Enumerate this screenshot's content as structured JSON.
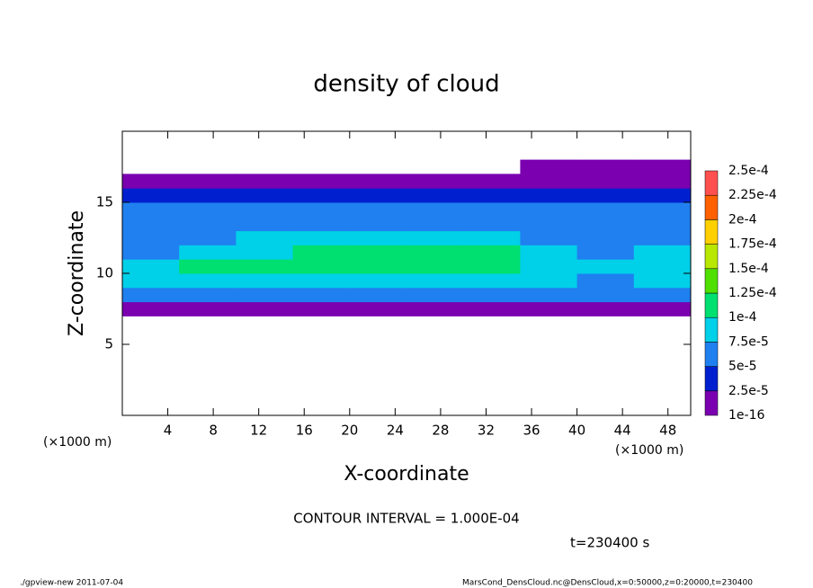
{
  "chart_data": {
    "type": "heatmap",
    "title": "density of cloud",
    "x_label": "X-coordinate",
    "y_label": "Z-coordinate",
    "x_unit": "(×1000 m)",
    "x_unit_right": "(×1000 m)",
    "annotation": "CONTOUR INTERVAL = 1.000E-04",
    "time_label": "t=230400 s",
    "footer_left": "./gpview-new  2011-07-04",
    "footer_right": "MarsCond_DensCloud.nc@DensCloud,x=0:50000,z=0:20000,t=230400",
    "xlim": [
      0,
      50
    ],
    "ylim": [
      0,
      20
    ],
    "xticks": [
      4,
      8,
      12,
      16,
      20,
      24,
      28,
      32,
      36,
      40,
      44,
      48
    ],
    "yticks": [
      5,
      10,
      15
    ],
    "xbins": [
      0,
      5,
      10,
      15,
      20,
      25,
      30,
      35,
      40,
      45,
      50
    ],
    "ybins": [
      0,
      1,
      2,
      3,
      4,
      5,
      6,
      7,
      8,
      9,
      10,
      11,
      12,
      13,
      14,
      15,
      16,
      17,
      18,
      19,
      20
    ],
    "values": [
      [
        0,
        0,
        0,
        0,
        0,
        0,
        0,
        0,
        0,
        0
      ],
      [
        0,
        0,
        0,
        0,
        0,
        0,
        0,
        0,
        0,
        0
      ],
      [
        0,
        0,
        0,
        0,
        0,
        0,
        0,
        0,
        0,
        0
      ],
      [
        0,
        0,
        0,
        0,
        0,
        0,
        0,
        0,
        0,
        0
      ],
      [
        0,
        0,
        0,
        0,
        0,
        0,
        0,
        0,
        0,
        0
      ],
      [
        0,
        0,
        0,
        0,
        0,
        0,
        0,
        0,
        0,
        0
      ],
      [
        0,
        0,
        0,
        0,
        0,
        0,
        0,
        0,
        0,
        0
      ],
      [
        2e-05,
        2e-05,
        2e-05,
        2e-05,
        2e-05,
        2e-05,
        2e-05,
        2e-05,
        1e-05,
        2e-05
      ],
      [
        5e-05,
        6e-05,
        6e-05,
        6e-05,
        6e-05,
        6e-05,
        6e-05,
        6e-05,
        5e-05,
        6e-05
      ],
      [
        8e-05,
        9e-05,
        9e-05,
        9e-05,
        9e-05,
        9e-05,
        9e-05,
        8e-05,
        7e-05,
        8e-05
      ],
      [
        8e-05,
        0.0001,
        0.000105,
        0.00011,
        0.00011,
        0.00011,
        0.0001,
        9e-05,
        8e-05,
        9e-05
      ],
      [
        7e-05,
        8e-05,
        9e-05,
        0.000105,
        0.000105,
        0.000105,
        0.0001,
        8e-05,
        7e-05,
        8e-05
      ],
      [
        7e-05,
        7e-05,
        8e-05,
        8e-05,
        8e-05,
        8e-05,
        8e-05,
        7e-05,
        7e-05,
        7e-05
      ],
      [
        7e-05,
        7e-05,
        7e-05,
        7e-05,
        7e-05,
        7e-05,
        7e-05,
        7e-05,
        7e-05,
        7e-05
      ],
      [
        6e-05,
        6e-05,
        6e-05,
        6e-05,
        6e-05,
        6e-05,
        6e-05,
        6e-05,
        6e-05,
        6e-05
      ],
      [
        3e-05,
        3e-05,
        3e-05,
        3e-05,
        3e-05,
        3e-05,
        3e-05,
        3e-05,
        3e-05,
        3e-05
      ],
      [
        1e-05,
        1e-05,
        1e-05,
        1e-05,
        1e-05,
        1e-05,
        1e-05,
        1e-05,
        1e-05,
        1e-05
      ],
      [
        0,
        0,
        0,
        0,
        0,
        0,
        0,
        1e-05,
        1e-05,
        1e-05
      ],
      [
        0,
        0,
        0,
        0,
        0,
        0,
        0,
        0,
        0,
        0
      ],
      [
        0,
        0,
        0,
        0,
        0,
        0,
        0,
        0,
        0,
        0
      ]
    ],
    "levels": [
      {
        "value": 1e-16,
        "label": "1e-16"
      },
      {
        "value": 2.5e-05,
        "label": "2.5e-5"
      },
      {
        "value": 5e-05,
        "label": "5e-5"
      },
      {
        "value": 7.5e-05,
        "label": "7.5e-5"
      },
      {
        "value": 0.0001,
        "label": "1e-4"
      },
      {
        "value": 0.000125,
        "label": "1.25e-4"
      },
      {
        "value": 0.00015,
        "label": "1.5e-4"
      },
      {
        "value": 0.000175,
        "label": "1.75e-4"
      },
      {
        "value": 0.0002,
        "label": "2e-4"
      },
      {
        "value": 0.000225,
        "label": "2.25e-4"
      },
      {
        "value": 0.00025,
        "label": "2.5e-4"
      }
    ],
    "colors": [
      "#7a00b0",
      "#0020d0",
      "#2080f0",
      "#00d0e8",
      "#00e070",
      "#50e000",
      "#b8e800",
      "#ffd000",
      "#ff6000",
      "#ff5050"
    ]
  }
}
